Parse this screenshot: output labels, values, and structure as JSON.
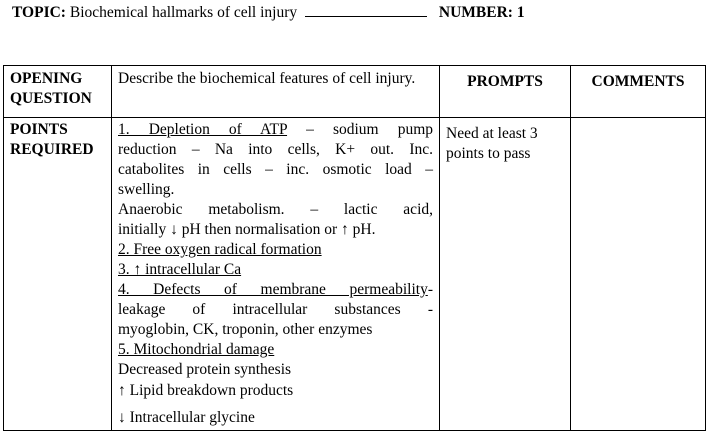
{
  "header": {
    "topic_label": "TOPIC:",
    "topic_text": "Biochemical hallmarks of cell injury",
    "number_label": "NUMBER:",
    "number_value": "1"
  },
  "table": {
    "opening_label_1": "OPENING",
    "opening_label_2": "QUESTION",
    "opening_question": "Describe the biochemical features of cell injury.",
    "prompts_header": "PROMPTS",
    "comments_header": "COMMENTS",
    "points_label_1": "POINTS",
    "points_label_2": "REQUIRED",
    "points": {
      "p1_title": "1. Depletion of ATP",
      "p1_rest": "– sodium pump",
      "p1_line2": "reduction – Na into cells, K+ out.  Inc.",
      "p1_line3": "catabolites in cells – inc. osmotic load –",
      "p1_line4": "swelling.",
      "p1_line5": "Anaerobic metabolism. – lactic acid,",
      "p1_line6": "initially ↓ pH then normalisation or ↑ pH.",
      "p2": "2. Free oxygen radical formation",
      "p3": "3. ↑ intracellular Ca",
      "p4_title": "4. Defects of membrane permeability",
      "p4_rest": "-",
      "p4_line2": "leakage of intracellular substances -",
      "p4_line3": "myoglobin, CK, troponin, other enzymes",
      "p5": "5. Mitochondrial damage",
      "extra1": "Decreased protein synthesis",
      "extra2": "↑ Lipid breakdown products",
      "extra3": "↓ Intracellular glycine"
    },
    "prompts_text": "Need at least 3 points to pass",
    "comments_text": ""
  }
}
